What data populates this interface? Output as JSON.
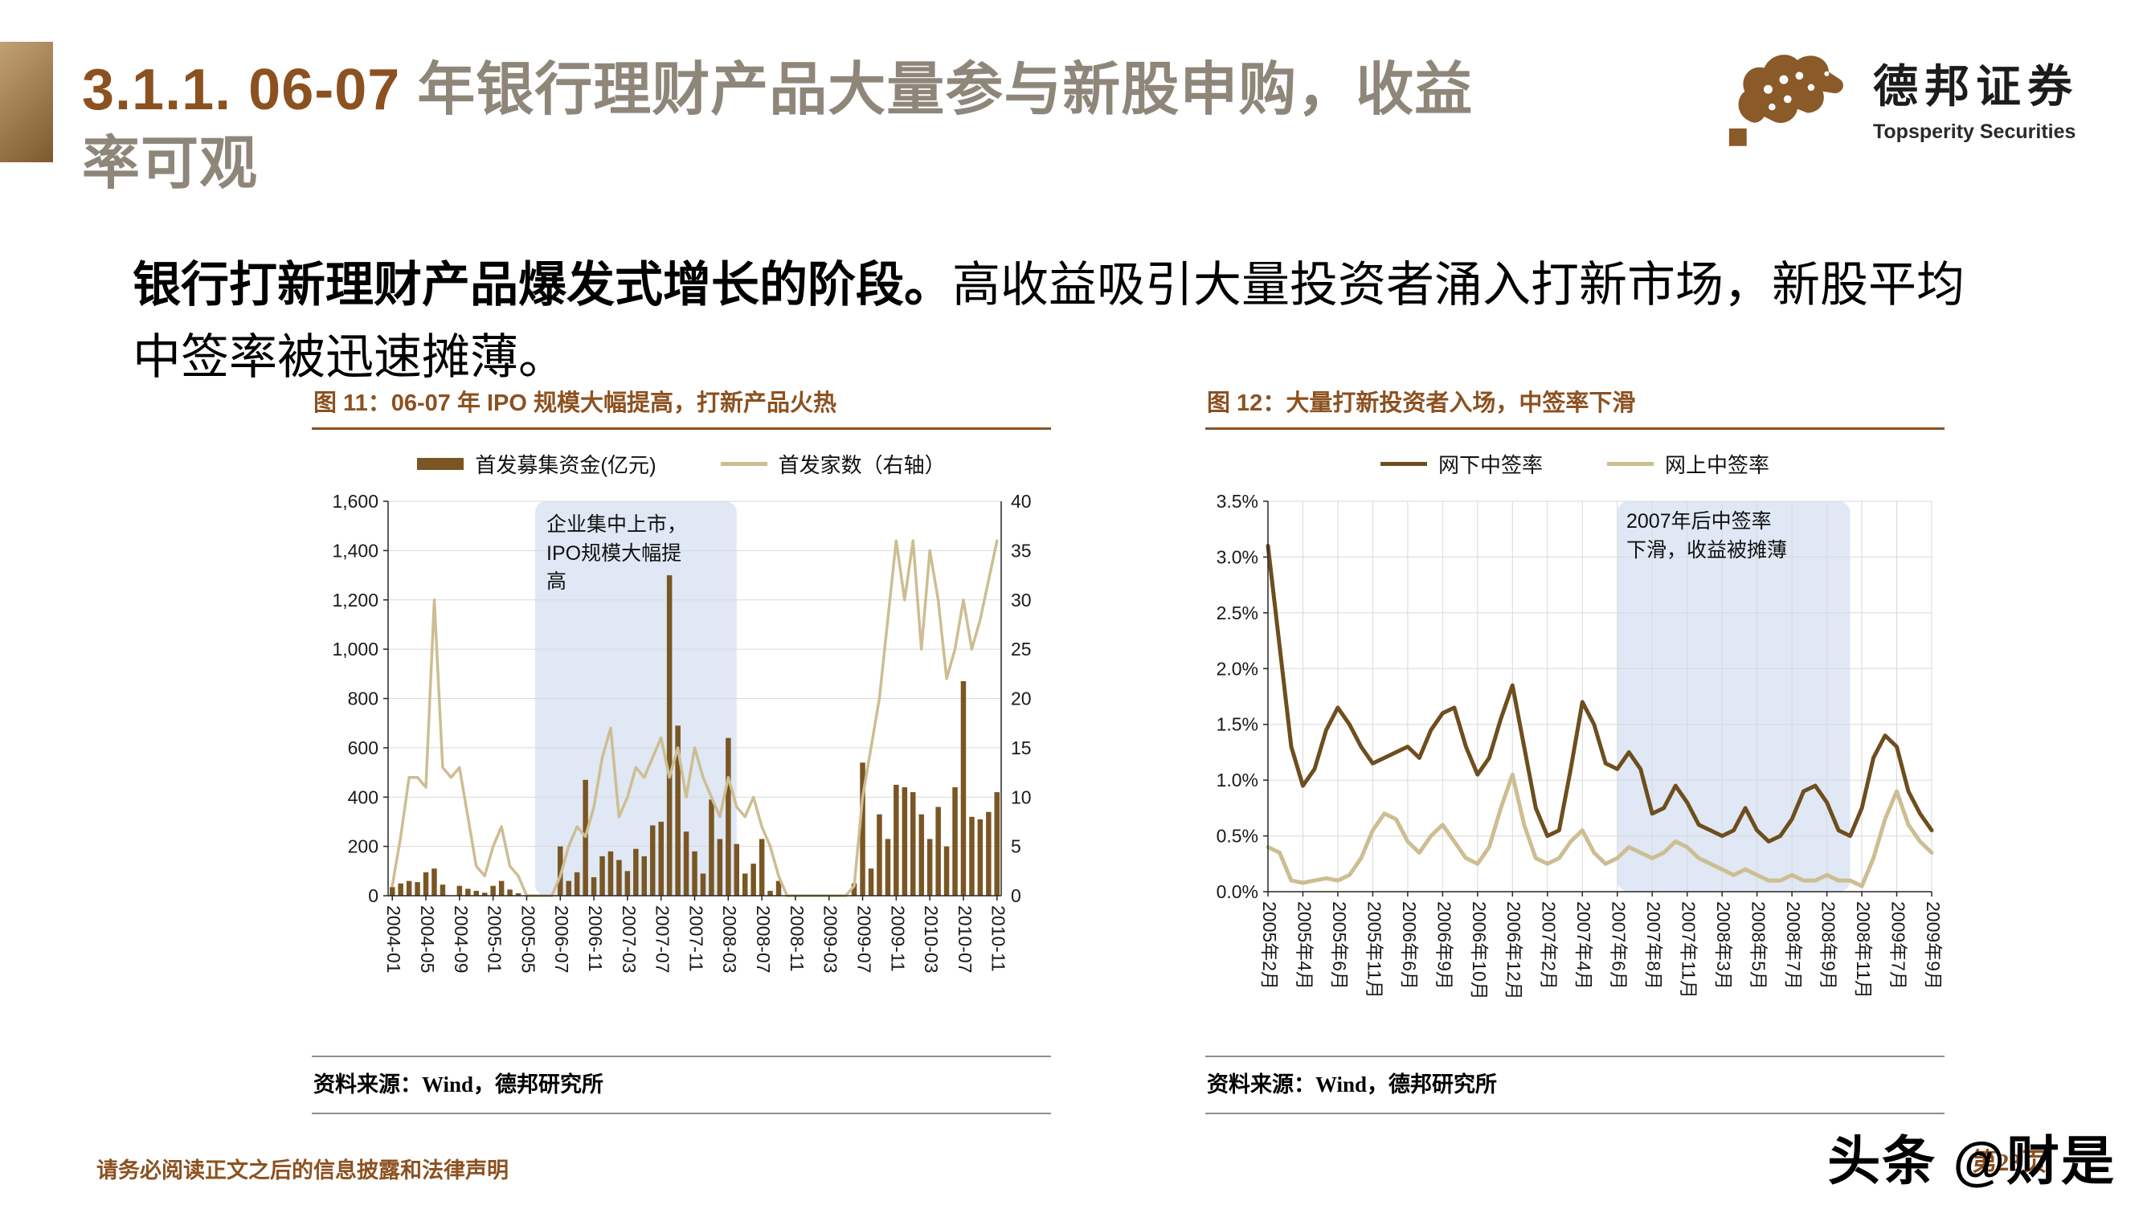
{
  "header": {
    "title_num": "3.1.1. 06-07 ",
    "title_text": "年银行理财产品大量参与新股申购，收益率可观",
    "logo_cn": "德邦证券",
    "logo_en": "Topsperity Securities"
  },
  "lead": {
    "bold": "银行打新理财产品爆发式增长的阶段。",
    "rest": "高收益吸引大量投资者涌入打新市场，新股平均中签率被迅速摊薄。"
  },
  "figures": [
    {
      "title": "图 11：06-07 年 IPO 规模大幅提高，打新产品火热",
      "annotation": "企业集中上市，IPO规模大幅提高",
      "source": "资料来源：Wind，德邦研究所"
    },
    {
      "title": "图 12：大量打新投资者入场，中签率下滑",
      "annotation": "2007年后中签率下滑，收益被摊薄",
      "source": "资料来源：Wind，德邦研究所"
    }
  ],
  "footer": {
    "disclaimer": "请务必阅读正文之后的信息披露和法律声明",
    "page": "第23页",
    "watermark": "头条 @财是"
  },
  "colors": {
    "accent_brown": "#8c5120",
    "bar_brown": "#7a5624",
    "dark_line": "#6e4e1e",
    "tan_line": "#cdbd92",
    "region_blue": "#dbe5f3"
  },
  "chart_data": [
    {
      "type": "bar",
      "title": "图 11：06-07 年 IPO 规模大幅提高，打新产品火热",
      "legend_position": "top",
      "grid": "h",
      "categories": [
        "2004-01",
        "2004-02",
        "2004-03",
        "2004-04",
        "2004-05",
        "2004-06",
        "2004-07",
        "2004-08",
        "2004-09",
        "2004-10",
        "2004-11",
        "2004-12",
        "2005-01",
        "2005-02",
        "2005-03",
        "2005-04",
        "2005-05",
        "2005-06",
        "2005-07",
        "2005-08",
        "2006-07",
        "2006-08",
        "2006-09",
        "2006-10",
        "2006-11",
        "2006-12",
        "2007-01",
        "2007-02",
        "2007-03",
        "2007-04",
        "2007-05",
        "2007-06",
        "2007-07",
        "2007-08",
        "2007-09",
        "2007-10",
        "2007-11",
        "2007-12",
        "2008-01",
        "2008-02",
        "2008-03",
        "2008-04",
        "2008-05",
        "2008-06",
        "2008-07",
        "2008-08",
        "2008-09",
        "2008-10",
        "2008-11",
        "2008-12",
        "2009-01",
        "2009-02",
        "2009-03",
        "2009-04",
        "2009-05",
        "2009-06",
        "2009-07",
        "2009-08",
        "2009-09",
        "2009-10",
        "2009-11",
        "2009-12",
        "2010-01",
        "2010-02",
        "2010-03",
        "2010-04",
        "2010-05",
        "2010-06",
        "2010-07",
        "2010-08",
        "2010-09",
        "2010-10",
        "2010-11"
      ],
      "x_tick_step": 4,
      "y_left": {
        "min": 0,
        "max": 1600,
        "step": 200,
        "format": "comma"
      },
      "y_right": {
        "min": 0,
        "max": 40,
        "step": 5,
        "format": "int"
      },
      "bars": {
        "name": "首发募集资金(亿元)",
        "color": "#7a5624",
        "axis": "left",
        "values": [
          35,
          50,
          60,
          55,
          95,
          110,
          45,
          0,
          40,
          28,
          20,
          12,
          40,
          60,
          25,
          10,
          0,
          0,
          0,
          0,
          200,
          60,
          95,
          470,
          75,
          160,
          180,
          145,
          100,
          190,
          160,
          285,
          300,
          1300,
          690,
          260,
          180,
          90,
          390,
          230,
          640,
          210,
          90,
          130,
          230,
          20,
          60,
          0,
          0,
          0,
          0,
          0,
          0,
          0,
          0,
          50,
          540,
          110,
          330,
          230,
          450,
          440,
          420,
          330,
          230,
          360,
          200,
          440,
          870,
          320,
          310,
          340,
          420
        ]
      },
      "series": [
        {
          "name": "首发家数（右轴）",
          "color": "#cdbd92",
          "axis": "right",
          "width": 3.5,
          "values": [
            1,
            6,
            12,
            12,
            11,
            30,
            13,
            12,
            13,
            8,
            3,
            2,
            5,
            7,
            3,
            2,
            0,
            0,
            0,
            0,
            2,
            5,
            7,
            6,
            9,
            14,
            17,
            8,
            10,
            13,
            12,
            14,
            16,
            12,
            15,
            10,
            15,
            12,
            10,
            8,
            12,
            9,
            8,
            10,
            7,
            5,
            2,
            0,
            0,
            0,
            0,
            0,
            0,
            0,
            0,
            1,
            10,
            15,
            20,
            28,
            36,
            30,
            36,
            25,
            35,
            30,
            22,
            25,
            30,
            25,
            28,
            32,
            36
          ]
        }
      ],
      "region": {
        "from": 17,
        "to": 41,
        "fill": "#dbe5f3",
        "label": "企业集中上市，IPO规模大幅提高"
      }
    },
    {
      "type": "line",
      "title": "图 12：大量打新投资者入场，中签率下滑",
      "legend_position": "top",
      "grid": "hv",
      "n_points": 58,
      "x_tick_step": 3,
      "x_tick_labels": [
        "2005年2月",
        "2005年4月",
        "2005年6月",
        "2005年11月",
        "2006年6月",
        "2006年9月",
        "2006年10月",
        "2006年12月",
        "2007年2月",
        "2007年4月",
        "2007年6月",
        "2007年8月",
        "2007年11月",
        "2008年3月",
        "2008年5月",
        "2008年7月",
        "2008年9月",
        "2008年11月",
        "2009年7月",
        "2009年9月"
      ],
      "y_left": {
        "min": 0,
        "max": 3.5,
        "step": 0.5,
        "format": "percent1"
      },
      "series": [
        {
          "name": "网下中签率",
          "color": "#6e4e1e",
          "axis": "left",
          "width": 5,
          "values": [
            3.1,
            2.2,
            1.3,
            0.95,
            1.1,
            1.45,
            1.65,
            1.5,
            1.3,
            1.15,
            1.2,
            1.25,
            1.3,
            1.2,
            1.45,
            1.6,
            1.65,
            1.3,
            1.05,
            1.2,
            1.55,
            1.85,
            1.3,
            0.75,
            0.5,
            0.55,
            1.1,
            1.7,
            1.5,
            1.15,
            1.1,
            1.25,
            1.1,
            0.7,
            0.75,
            0.95,
            0.8,
            0.6,
            0.55,
            0.5,
            0.55,
            0.75,
            0.55,
            0.45,
            0.5,
            0.65,
            0.9,
            0.95,
            0.8,
            0.55,
            0.5,
            0.75,
            1.2,
            1.4,
            1.3,
            0.9,
            0.7,
            0.55
          ]
        },
        {
          "name": "网上中签率",
          "color": "#cdbd92",
          "axis": "left",
          "width": 5,
          "values": [
            0.4,
            0.35,
            0.1,
            0.08,
            0.1,
            0.12,
            0.1,
            0.15,
            0.3,
            0.55,
            0.7,
            0.65,
            0.45,
            0.35,
            0.5,
            0.6,
            0.45,
            0.3,
            0.25,
            0.4,
            0.75,
            1.05,
            0.6,
            0.3,
            0.25,
            0.3,
            0.45,
            0.55,
            0.35,
            0.25,
            0.3,
            0.4,
            0.35,
            0.3,
            0.35,
            0.45,
            0.4,
            0.3,
            0.25,
            0.2,
            0.15,
            0.2,
            0.15,
            0.1,
            0.1,
            0.15,
            0.1,
            0.1,
            0.15,
            0.1,
            0.1,
            0.05,
            0.3,
            0.65,
            0.9,
            0.6,
            0.45,
            0.35
          ]
        }
      ],
      "region": {
        "from": 30,
        "to": 50,
        "fill": "#dbe5f3",
        "label": "2007年后中签率下滑，收益被摊薄"
      }
    }
  ]
}
